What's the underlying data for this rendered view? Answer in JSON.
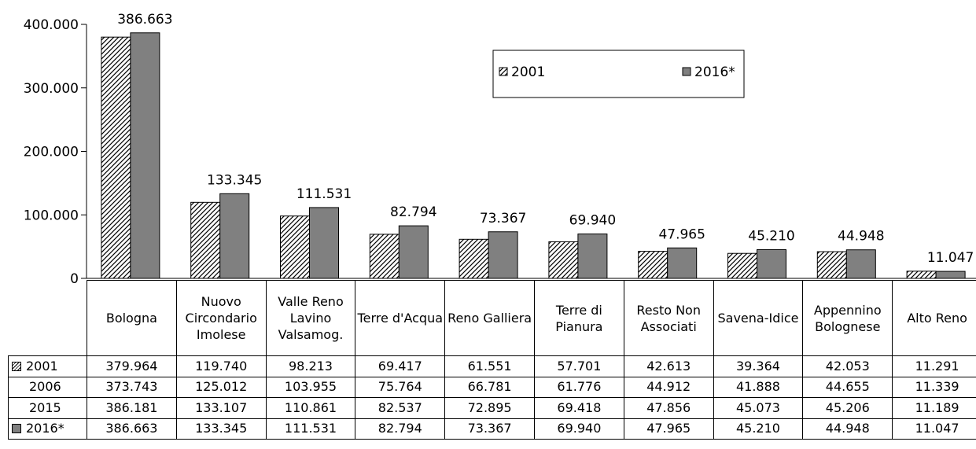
{
  "chart_data": {
    "type": "bar",
    "categories": [
      "Bologna",
      "Nuovo Circondario Imolese",
      "Valle Reno Lavino Valsamog.",
      "Terre d'Acqua",
      "Reno Galliera",
      "Terre di Pianura",
      "Resto Non Associati",
      "Savena-Idice",
      "Appennino Bolognese",
      "Alto Reno"
    ],
    "series": [
      {
        "name": "2001",
        "color": "#ffffff",
        "pattern": "hatch",
        "values": [
          379964,
          119740,
          98213,
          69417,
          61551,
          57701,
          42613,
          39364,
          42053,
          11291
        ],
        "value_labels": [
          "379.964",
          "119.740",
          "98.213",
          "69.417",
          "61.551",
          "57.701",
          "42.613",
          "39.364",
          "42.053",
          "11.291"
        ]
      },
      {
        "name": "2016*",
        "color": "#808080",
        "show_labels": true,
        "values": [
          386663,
          133345,
          111531,
          82794,
          73367,
          69940,
          47965,
          45210,
          44948,
          11047
        ],
        "value_labels": [
          "386.663",
          "133.345",
          "111.531",
          "82.794",
          "73.367",
          "69.940",
          "47.965",
          "45.210",
          "44.948",
          "11.047"
        ]
      }
    ],
    "table_rows": [
      {
        "name": "2006",
        "value_labels": [
          "373.743",
          "125.012",
          "103.955",
          "75.764",
          "66.781",
          "61.776",
          "44.912",
          "41.888",
          "44.655",
          "11.339"
        ]
      },
      {
        "name": "2015",
        "value_labels": [
          "386.181",
          "133.107",
          "110.861",
          "82.537",
          "72.895",
          "69.418",
          "47.856",
          "45.073",
          "45.206",
          "11.189"
        ]
      }
    ],
    "ylim": [
      0,
      400000
    ],
    "yticks": [
      0,
      {
        "value": 100000,
        "label": "100.000"
      },
      {
        "value": 200000,
        "label": "200.000"
      },
      {
        "value": 300000,
        "label": "300.000"
      },
      {
        "value": 400000,
        "label": "400.000"
      }
    ],
    "legend": "top"
  }
}
